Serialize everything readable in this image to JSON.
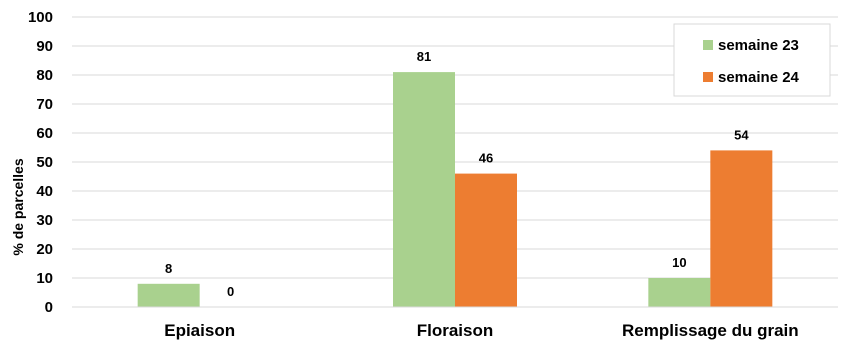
{
  "chart_data": {
    "type": "bar",
    "categories": [
      "Epiaison",
      "Floraison",
      "Remplissage du grain"
    ],
    "series": [
      {
        "name": "semaine 23",
        "values": [
          8,
          81,
          10
        ],
        "color": "#A9D18E"
      },
      {
        "name": "semaine 24",
        "values": [
          0,
          46,
          54
        ],
        "color": "#ED7D31"
      }
    ],
    "data_labels": [
      [
        "8",
        "81",
        "10"
      ],
      [
        "0",
        "46",
        "54"
      ]
    ],
    "ylabel": "% de parcelles",
    "xlabel": "",
    "ylim": [
      0,
      100
    ],
    "yticks": [
      0,
      10,
      20,
      30,
      40,
      50,
      60,
      70,
      80,
      90,
      100
    ],
    "grid": true,
    "legend": "top-right"
  }
}
